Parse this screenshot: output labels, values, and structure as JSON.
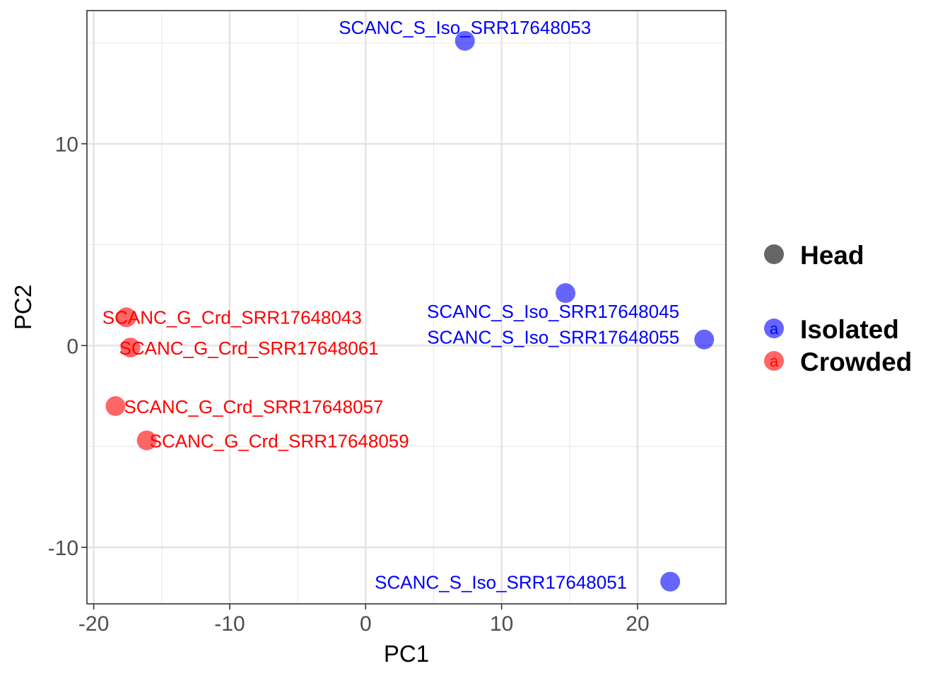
{
  "chart_data": {
    "type": "scatter",
    "title": "",
    "xlabel": "PC1",
    "ylabel": "PC2",
    "xlim": [
      -20.5,
      26.5
    ],
    "ylim": [
      -12.8,
      16.6
    ],
    "xticks": [
      -20,
      -10,
      0,
      10,
      20
    ],
    "xtick_labels": [
      "-20",
      "-10",
      "0",
      "10",
      "20"
    ],
    "yticks": [
      -10,
      0,
      10
    ],
    "ytick_labels": [
      "-10",
      "0",
      "10"
    ],
    "grid": true,
    "legend_position": "right",
    "legend": {
      "shape_entries": [
        {
          "label": "Head",
          "color": "#666666"
        }
      ],
      "color_entries": [
        {
          "label": "Isolated",
          "color": "#0000FF"
        },
        {
          "label": "Crowded",
          "color": "#FF0000"
        }
      ]
    },
    "colors": {
      "Isolated": "#0000FF",
      "Crowded": "#FF0000"
    },
    "series": [
      {
        "name": "Isolated",
        "points": [
          {
            "x": 7.3,
            "y": 15.1,
            "label": "SCANC_S_Iso_SRR17648053"
          },
          {
            "x": 14.7,
            "y": 2.6,
            "label": "SCANC_S_Iso_SRR17648045"
          },
          {
            "x": 24.9,
            "y": 0.3,
            "label": "SCANC_S_Iso_SRR17648055"
          },
          {
            "x": 22.4,
            "y": -11.7,
            "label": "SCANC_S_Iso_SRR17648051"
          }
        ]
      },
      {
        "name": "Crowded",
        "points": [
          {
            "x": -17.6,
            "y": 1.4,
            "label": "SCANC_G_Crd_SRR17648043"
          },
          {
            "x": -17.3,
            "y": -0.1,
            "label": "SCANC_G_Crd_SRR17648061"
          },
          {
            "x": -18.4,
            "y": -3.0,
            "label": "SCANC_G_Crd_SRR17648057"
          },
          {
            "x": -16.1,
            "y": -4.7,
            "label": "SCANC_G_Crd_SRR17648059"
          }
        ]
      }
    ]
  }
}
